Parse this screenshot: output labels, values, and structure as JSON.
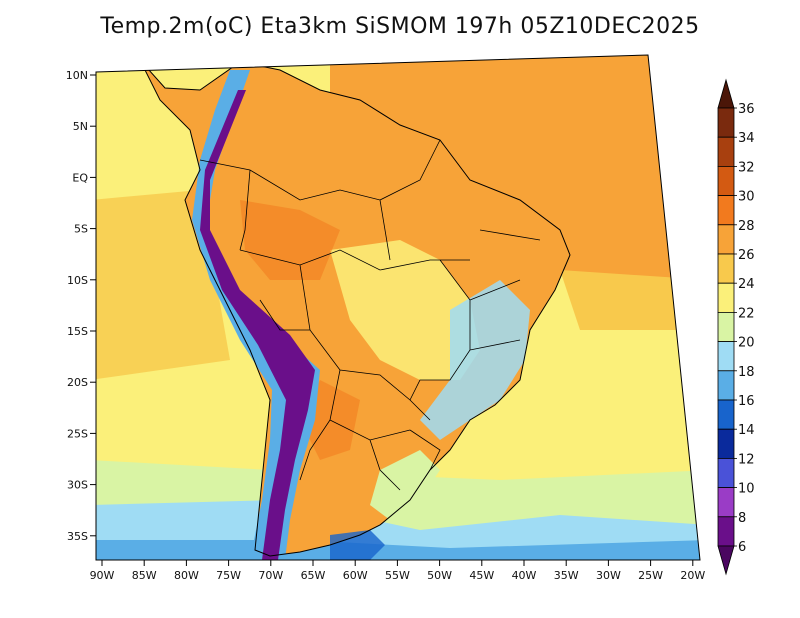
{
  "title": "Temp.2m(oC) Eta3km SiSMOM 197h 05Z10DEC2025",
  "units": "oC",
  "latitude_labels": [
    "10N",
    "5N",
    "EQ",
    "5S",
    "10S",
    "15S",
    "20S",
    "25S",
    "30S",
    "35S"
  ],
  "longitude_labels": [
    "90W",
    "85W",
    "80W",
    "75W",
    "70W",
    "65W",
    "60W",
    "55W",
    "50W",
    "45W",
    "40W",
    "35W",
    "30W",
    "25W",
    "20W"
  ],
  "colorbar": {
    "labels": [
      "36",
      "34",
      "32",
      "30",
      "28",
      "26",
      "24",
      "22",
      "20",
      "18",
      "16",
      "14",
      "12",
      "10",
      "8",
      "6"
    ],
    "colors": [
      "#4b1608",
      "#7a2a0e",
      "#a8400f",
      "#d35a12",
      "#f27a1e",
      "#f7a338",
      "#f8c94c",
      "#fbf07a",
      "#d9f4a4",
      "#9fdcf4",
      "#5aaee6",
      "#1864cc",
      "#0a2a9c",
      "#4a52d8",
      "#9a3cc6",
      "#6a0f8a",
      "#4a0660"
    ]
  },
  "palette": {
    "ocean_tropical": "#f7a338",
    "ocean_warm": "#f8c94c",
    "ocean_mild": "#fbf07a",
    "ocean_cool": "#d9f4a4",
    "ocean_cold": "#9fdcf4",
    "land_hot": "#f27a1e",
    "andes_cold": "#6a0f8a",
    "outline": "#000000"
  }
}
